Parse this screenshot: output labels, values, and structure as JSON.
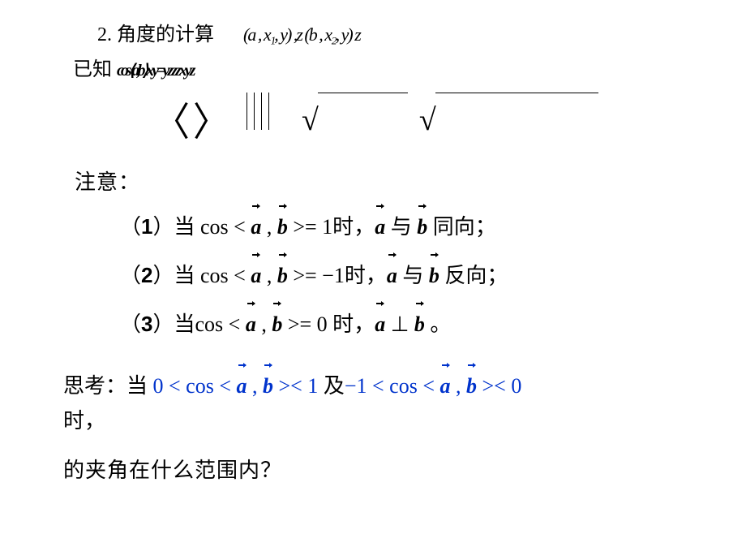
{
  "header": {
    "section_title": "2. 角度的计算",
    "garble1": "(a  , x₁, y) ,z    (b  , x₂, y)  z",
    "given_label": "已知",
    "garble2": "cos⟨a,b⟩  x y =y z   z z x    y    z"
  },
  "note_header": "注意：",
  "rules": [
    {
      "num": "1",
      "prefix": "当 ",
      "expr_pre": "cos < ",
      "a": "a",
      "mid": " , ",
      "b": "b",
      "expr_post": " >= 1",
      "when": "时",
      "comma": "，",
      "a2": "a",
      "join": " 与 ",
      "b2": "b",
      "tail": " 同向；"
    },
    {
      "num": "2",
      "prefix": "当 ",
      "expr_pre": "cos < ",
      "a": "a",
      "mid": " , ",
      "b": "b",
      "expr_post": " >= −1",
      "when": "时",
      "comma": "，",
      "a2": "a",
      "join": " 与 ",
      "b2": "b",
      "tail": " 反向；"
    },
    {
      "num": "3",
      "prefix": "当",
      "expr_pre": "cos < ",
      "a": "a",
      "mid": " , ",
      "b": "b",
      "expr_post": " >= 0 ",
      "when": "时",
      "comma": "，",
      "a2": "a",
      "join": " ⊥ ",
      "b2": "b",
      "tail": " 。"
    }
  ],
  "think": {
    "label": "思考：当 ",
    "expr1_pre": "0 < cos < ",
    "a": "a",
    "mid": " , ",
    "b": "b",
    "expr1_post": " >< 1",
    "join": " 及",
    "expr2_pre": "−1 < cos < ",
    "expr2_post": " >< 0",
    "line2": "时，",
    "question": "的夹角在什么范围内？"
  },
  "colors": {
    "text": "#000000",
    "accent": "#0033cc",
    "bg": "#ffffff"
  }
}
